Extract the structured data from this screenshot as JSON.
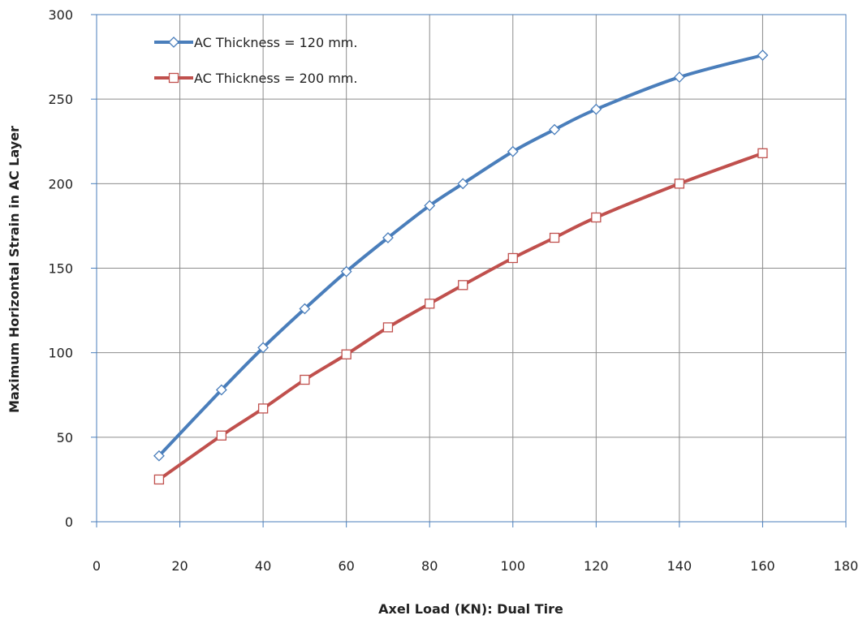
{
  "chart_data": {
    "type": "line",
    "xlabel": "Axel Load (KN): Dual Tire",
    "ylabel": "Maximum Horizontal Strain in AC Layer",
    "xlim": [
      0,
      180
    ],
    "ylim": [
      0,
      300
    ],
    "xticks": [
      "0",
      "20",
      "40",
      "60",
      "80",
      "100",
      "120",
      "140",
      "160",
      "180"
    ],
    "yticks": [
      "0",
      "50",
      "100",
      "150",
      "200",
      "250",
      "300"
    ],
    "grid": true,
    "legend_position": "top-left",
    "series": [
      {
        "name": "AC Thickness = 120 mm.",
        "color": "#4a7ebb",
        "marker": "diamond",
        "x": [
          15,
          30,
          40,
          50,
          60,
          70,
          80,
          88,
          100,
          110,
          120,
          140,
          160
        ],
        "y": [
          39,
          78,
          103,
          126,
          148,
          168,
          187,
          200,
          219,
          232,
          244,
          263,
          276
        ]
      },
      {
        "name": "AC Thickness = 200 mm.",
        "color": "#c0504d",
        "marker": "square",
        "x": [
          15,
          30,
          40,
          50,
          60,
          70,
          80,
          88,
          100,
          110,
          120,
          140,
          160
        ],
        "y": [
          25,
          51,
          67,
          84,
          99,
          115,
          129,
          140,
          156,
          168,
          180,
          200,
          218
        ]
      }
    ]
  }
}
